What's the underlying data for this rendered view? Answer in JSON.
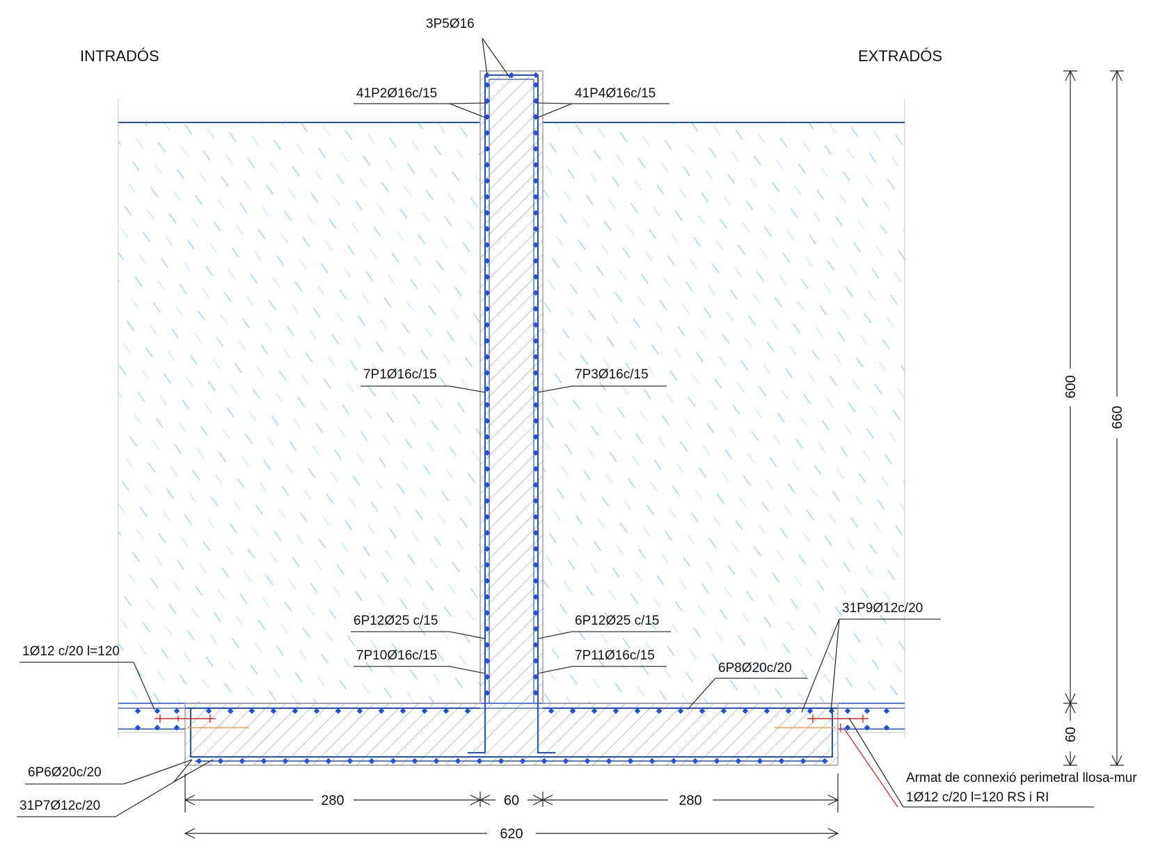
{
  "headers": {
    "left": "INTRADÓS",
    "right": "EXTRADÓS"
  },
  "labels": {
    "top_bars": "3P5Ø16",
    "wall_top_left": "41P2Ø16c/15",
    "wall_top_right": "41P4Ø16c/15",
    "wall_mid_left": "7P1Ø16c/15",
    "wall_mid_right": "7P3Ø16c/15",
    "wall_low_left": "6P12Ø25 c/15",
    "wall_low_right": "6P12Ø25 c/15",
    "wall_base_left": "7P10Ø16c/15",
    "wall_base_right": "7P11Ø16c/15",
    "slab_left_connection": "1Ø12 c/20 l=120",
    "slab_right_top": "31P9Ø12c/20",
    "slab_top_bars": "6P8Ø20c/20",
    "slab_bottom_left_1": "6P6Ø20c/20",
    "slab_bottom_left_2": "31P7Ø12c/20",
    "connection_note_line1": "Armat de connexió perimetral llosa-mur",
    "connection_note_line2": "1Ø12 c/20 l=120 RS i RI"
  },
  "dimensions": {
    "left_width": "280",
    "wall_width": "60",
    "right_width": "280",
    "total_width": "620",
    "wall_height": "600",
    "slab_height": "60",
    "total_height": "660"
  },
  "colors": {
    "rebar": "#1f4fe0",
    "soil_hatch": "#8fd2f0",
    "concrete_hatch": "#8a8a8a",
    "accent_red": "#e02020",
    "accent_orange": "#f0a040"
  }
}
